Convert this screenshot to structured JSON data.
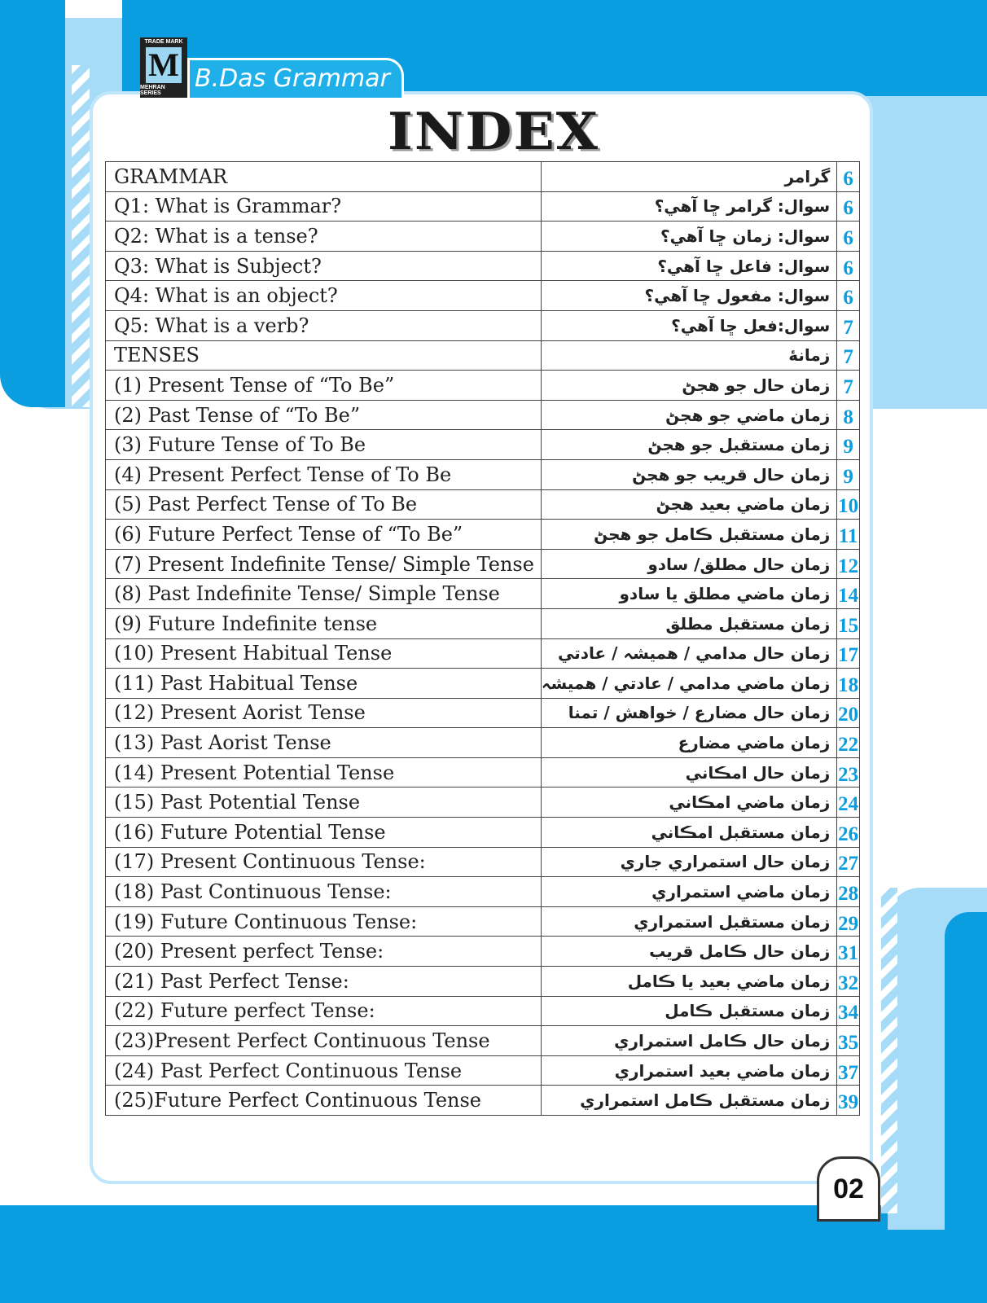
{
  "brand": {
    "logo_top": "TRADE MARK",
    "logo_letter": "M",
    "logo_bottom": "MEHRAN SERIES",
    "name": "B.Das Grammar"
  },
  "title": "INDEX",
  "accent_color": "#0a9ee0",
  "rows": [
    {
      "en": "GRAMMAR",
      "sd": "گرامر",
      "page": "6"
    },
    {
      "en": "Q1: What is Grammar?",
      "sd": "سوال: گرامر ڇا آهي؟",
      "page": "6"
    },
    {
      "en": "Q2: What is a tense?",
      "sd": "سوال: زمان ڇا آهي؟",
      "page": "6"
    },
    {
      "en": "Q3: What is Subject?",
      "sd": "سوال: فاعل ڇا آهي؟",
      "page": "6"
    },
    {
      "en": "Q4: What is an object?",
      "sd": "سوال: مفعول ڇا آهي؟",
      "page": "6"
    },
    {
      "en": "Q5: What is a verb?",
      "sd": "سوال:فعل ڇا آهي؟",
      "page": "7"
    },
    {
      "en": "TENSES",
      "sd": "زمانۀ",
      "page": "7"
    },
    {
      "en": "(1) Present Tense of “To Be”",
      "sd": "زمان حال جو هجڻ",
      "page": "7"
    },
    {
      "en": "(2) Past Tense of “To Be”",
      "sd": "زمان ماضي جو هجڻ",
      "page": "8"
    },
    {
      "en": "(3) Future Tense of To Be",
      "sd": "زمان مستقبل جو هجڻ",
      "page": "9"
    },
    {
      "en": "(4) Present Perfect Tense of  To Be",
      "sd": "زمان حال قريب جو هجڻ",
      "page": "9"
    },
    {
      "en": "(5) Past Perfect Tense of To Be",
      "sd": "زمان ماضي بعيد هجڻ",
      "page": "10"
    },
    {
      "en": "(6) Future Perfect Tense of “To Be”",
      "sd": "زمان مستقبل ڪامل جو هجڻ",
      "page": "11"
    },
    {
      "en": "(7) Present Indefinite Tense/ Simple Tense",
      "sd": "زمان حال مطلق/ سادو",
      "page": "12"
    },
    {
      "en": "(8) Past Indefinite Tense/ Simple Tense",
      "sd": "زمان ماضي مطلق يا سادو",
      "page": "14"
    },
    {
      "en": "(9) Future Indefinite tense",
      "sd": "زمان مستقبل مطلق",
      "page": "15"
    },
    {
      "en": "(10) Present Habitual Tense",
      "sd": "زمان حال مدامي / هميشہ / عادتي",
      "page": "17"
    },
    {
      "en": "(11) Past Habitual Tense",
      "sd": "زمان ماضي مدامي / عادتي / هميشہ",
      "page": "18"
    },
    {
      "en": "(12) Present Aorist Tense",
      "sd": "زمان حال مضارع / خواهش / تمنا",
      "page": "20"
    },
    {
      "en": "(13) Past Aorist Tense",
      "sd": "زمان ماضي مضارع",
      "page": "22"
    },
    {
      "en": "(14) Present Potential Tense",
      "sd": "زمان حال امڪاني",
      "page": "23"
    },
    {
      "en": "(15) Past Potential Tense",
      "sd": "زمان ماضي امڪاني",
      "page": "24"
    },
    {
      "en": "(16) Future Potential Tense",
      "sd": "زمان مستقبل امڪاني",
      "page": "26"
    },
    {
      "en": "(17) Present Continuous Tense:",
      "sd": "زمان حال استمراري جاري",
      "page": "27"
    },
    {
      "en": "(18) Past Continuous Tense:",
      "sd": "زمان ماضي استمراري",
      "page": "28"
    },
    {
      "en": "(19) Future Continuous Tense:",
      "sd": "زمان مستقبل استمراري",
      "page": "29"
    },
    {
      "en": "(20) Present perfect Tense:",
      "sd": "زمان حال  ڪامل قريب",
      "page": "31"
    },
    {
      "en": "(21) Past Perfect Tense:",
      "sd": "زمان ماضي بعيد يا ڪامل",
      "page": "32"
    },
    {
      "en": "(22) Future perfect Tense:",
      "sd": "زمان مستقبل ڪامل",
      "page": "34"
    },
    {
      "en": "(23)Present Perfect Continuous Tense",
      "sd": "زمان حال ڪامل استمراري",
      "page": "35"
    },
    {
      "en": "(24) Past Perfect Continuous Tense",
      "sd": "زمان ماضي بعيد استمراري",
      "page": "37"
    },
    {
      "en": "(25)Future Perfect Continuous Tense",
      "sd": "زمان مستقبل ڪامل استمراري",
      "page": "39"
    }
  ],
  "page_number": "02"
}
